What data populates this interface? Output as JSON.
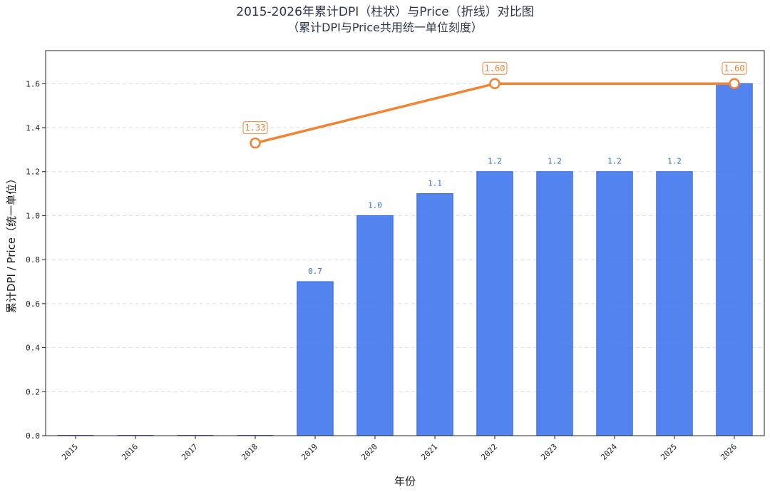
{
  "title": {
    "line1": "2015-2026年累计DPI（柱状）与Price（折线）对比图",
    "line2": "（累计DPI与Price共用统一单位刻度）"
  },
  "chart_data": {
    "type": "bar",
    "title": "2015-2026年累计DPI（柱状）与Price（折线）对比图",
    "subtitle": "（累计DPI与Price共用统一单位刻度）",
    "xlabel": "年份",
    "ylabel": "累计DPI / Price（统一单位）",
    "categories": [
      "2015",
      "2016",
      "2017",
      "2018",
      "2019",
      "2020",
      "2021",
      "2022",
      "2023",
      "2024",
      "2025",
      "2026"
    ],
    "ylim": [
      0,
      1.75
    ],
    "yticks": [
      "0.0",
      "0.2",
      "0.4",
      "0.6",
      "0.8",
      "1.0",
      "1.2",
      "1.4",
      "1.6"
    ],
    "grid": true,
    "series": [
      {
        "type": "bar",
        "values": [
          0,
          0,
          0,
          0,
          0.7,
          1.0,
          1.1,
          1.2,
          1.2,
          1.2,
          1.2,
          1.6
        ],
        "labels": [
          "",
          "",
          "",
          "",
          "0.7",
          "1.0",
          "1.1",
          "1.2",
          "1.2",
          "1.2",
          "1.2",
          ""
        ],
        "color": "#3b73ee"
      },
      {
        "type": "line",
        "points": [
          {
            "x": "2018",
            "y": 1.33,
            "label": "1.33"
          },
          {
            "x": "2022",
            "y": 1.6,
            "label": "1.60"
          },
          {
            "x": "2026",
            "y": 1.6,
            "label": "1.60"
          }
        ],
        "color": "#f28434"
      }
    ]
  }
}
